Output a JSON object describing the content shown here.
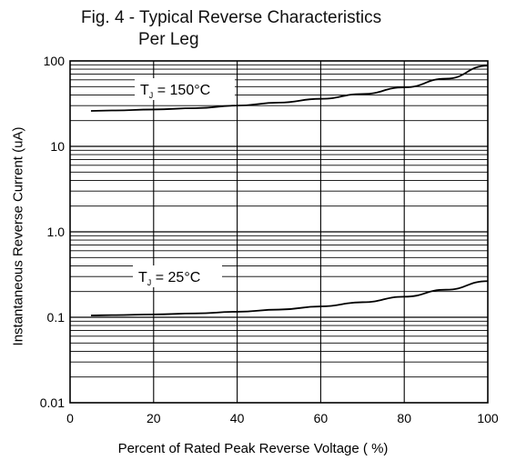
{
  "chart_data": {
    "type": "line",
    "title": "Fig. 4 - Typical Reverse Characteristics",
    "subtitle": "Per Leg",
    "xlabel": "Percent of Rated Peak Reverse Voltage ( %)",
    "ylabel": "Instantaneous Reverse Current (uA)",
    "xlim": [
      0,
      100
    ],
    "ylim": [
      0.01,
      100
    ],
    "yscale": "log",
    "grid": true,
    "x_ticks": [
      "0",
      "20",
      "40",
      "60",
      "80",
      "100"
    ],
    "y_ticks": [
      "0.01",
      "0.1",
      "1.0",
      "10",
      "100"
    ],
    "series": [
      {
        "name": "T_J = 150°C",
        "label_prefix": "T",
        "label_sub": "J",
        "label_suffix": " = 150°C",
        "x": [
          5,
          10,
          20,
          30,
          40,
          50,
          60,
          70,
          80,
          90,
          100
        ],
        "y": [
          26,
          26.3,
          27,
          28,
          30,
          32.5,
          36,
          41,
          49,
          62,
          88
        ]
      },
      {
        "name": "T_J = 25°C",
        "label_prefix": "T",
        "label_sub": "J",
        "label_suffix": " = 25°C",
        "x": [
          5,
          10,
          20,
          30,
          40,
          50,
          60,
          70,
          80,
          90,
          100
        ],
        "y": [
          0.105,
          0.106,
          0.108,
          0.111,
          0.116,
          0.123,
          0.134,
          0.15,
          0.174,
          0.21,
          0.265
        ]
      }
    ]
  }
}
